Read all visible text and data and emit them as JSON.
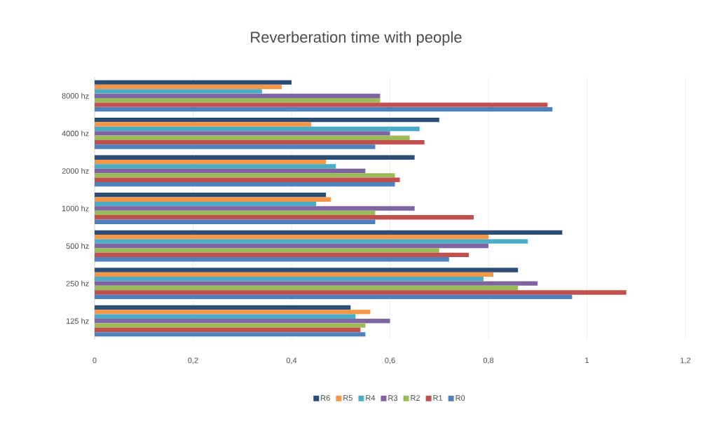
{
  "chart_data": {
    "type": "bar",
    "orientation": "horizontal",
    "title": "Reverberation time with people",
    "categories": [
      "8000 hz",
      "4000 hz",
      "2000 hz",
      "1000 hz",
      "500 hz",
      "250 hz",
      "125 hz"
    ],
    "series": [
      {
        "name": "R6",
        "color": "#2c4d75",
        "values": [
          0.4,
          0.7,
          0.65,
          0.47,
          0.95,
          0.86,
          0.52
        ]
      },
      {
        "name": "R5",
        "color": "#f79646",
        "values": [
          0.38,
          0.44,
          0.47,
          0.48,
          0.8,
          0.81,
          0.56
        ]
      },
      {
        "name": "R4",
        "color": "#4bacc6",
        "values": [
          0.34,
          0.66,
          0.49,
          0.45,
          0.88,
          0.79,
          0.53
        ]
      },
      {
        "name": "R3",
        "color": "#8064a2",
        "values": [
          0.58,
          0.6,
          0.55,
          0.65,
          0.8,
          0.9,
          0.6
        ]
      },
      {
        "name": "R2",
        "color": "#9bbb59",
        "values": [
          0.58,
          0.64,
          0.61,
          0.57,
          0.7,
          0.86,
          0.55
        ]
      },
      {
        "name": "R1",
        "color": "#c0504d",
        "values": [
          0.92,
          0.67,
          0.62,
          0.77,
          0.76,
          1.08,
          0.54
        ]
      },
      {
        "name": "R0",
        "color": "#4f81bd",
        "values": [
          0.93,
          0.57,
          0.61,
          0.57,
          0.72,
          0.97,
          0.55
        ]
      }
    ],
    "xlim": [
      0,
      1.2
    ],
    "xticks": [
      {
        "value": 0,
        "label": "0"
      },
      {
        "value": 0.2,
        "label": "0,2"
      },
      {
        "value": 0.4,
        "label": "0,4"
      },
      {
        "value": 0.6,
        "label": "0,6"
      },
      {
        "value": 0.8,
        "label": "0,8"
      },
      {
        "value": 1,
        "label": "1"
      },
      {
        "value": 1.2,
        "label": "1,2"
      }
    ],
    "grid": "x",
    "legend": "bottom"
  }
}
